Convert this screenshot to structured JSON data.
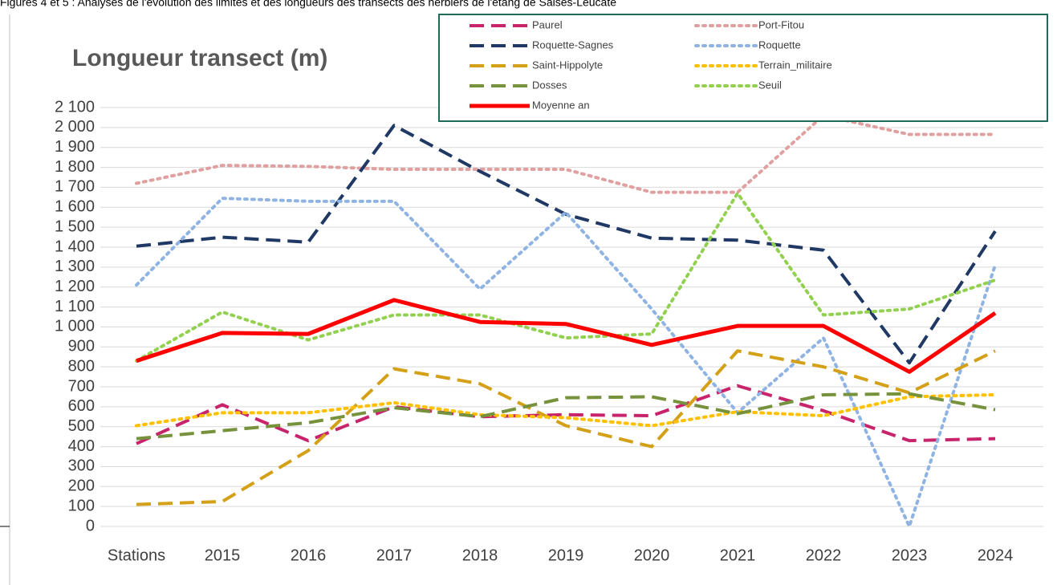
{
  "caption": "Figures 4 et 5 : Analyses de l'évolution des limites et des longueurs des transects des herbiers de l'étang de Salses-Leucate",
  "chart_data": {
    "type": "line",
    "title": "Longueur transect (m)",
    "categories": [
      "Stations",
      "2015",
      "2016",
      "2017",
      "2018",
      "2019",
      "2020",
      "2021",
      "2022",
      "2023",
      "2024"
    ],
    "series": [
      {
        "name": "Paurel",
        "color": "#c8246c",
        "style": "dashed",
        "values": [
          415,
          610,
          430,
          600,
          550,
          560,
          555,
          705,
          580,
          430,
          440
        ]
      },
      {
        "name": "Port-Fitou",
        "color": "#e0a0a0",
        "style": "dotted",
        "values": [
          1720,
          1810,
          1805,
          1790,
          1790,
          1790,
          1675,
          1675,
          2060,
          1965,
          1965
        ]
      },
      {
        "name": "Roquette-Sagnes",
        "color": "#1f3864",
        "style": "dashed",
        "values": [
          1405,
          1450,
          1425,
          2010,
          1780,
          1565,
          1445,
          1435,
          1385,
          820,
          1480
        ]
      },
      {
        "name": "Roquette",
        "color": "#8fb4e3",
        "style": "dotted",
        "values": [
          1210,
          1645,
          1630,
          1630,
          1190,
          1575,
          1090,
          570,
          945,
          0,
          1310
        ]
      },
      {
        "name": "Saint-Hippolyte",
        "color": "#d4a017",
        "style": "dashed",
        "values": [
          110,
          125,
          380,
          790,
          715,
          505,
          400,
          880,
          800,
          670,
          880
        ]
      },
      {
        "name": "Terrain_militaire",
        "color": "#ffc000",
        "style": "dotted",
        "values": [
          505,
          570,
          570,
          620,
          560,
          545,
          505,
          575,
          555,
          650,
          660
        ]
      },
      {
        "name": "Dosses",
        "color": "#76923c",
        "style": "dashed",
        "values": [
          440,
          480,
          520,
          595,
          550,
          645,
          650,
          565,
          660,
          665,
          585
        ]
      },
      {
        "name": "Seuil",
        "color": "#92d050",
        "style": "dotted",
        "values": [
          830,
          1075,
          935,
          1060,
          1060,
          945,
          965,
          1670,
          1060,
          1090,
          1235
        ]
      },
      {
        "name": "Moyenne an",
        "color": "#ff0000",
        "style": "solid",
        "values": [
          830,
          970,
          965,
          1135,
          1025,
          1015,
          910,
          1005,
          1005,
          775,
          1070
        ]
      }
    ],
    "ylim": [
      0,
      2100
    ],
    "yticks": [
      0,
      100,
      200,
      300,
      400,
      500,
      600,
      700,
      800,
      900,
      {
        "value": 1000,
        "label": "1 000"
      },
      {
        "value": 1100,
        "label": "1 100"
      },
      {
        "value": 1200,
        "label": "1 200"
      },
      {
        "value": 1300,
        "label": "1 300"
      },
      {
        "value": 1400,
        "label": "1 400"
      },
      {
        "value": 1500,
        "label": "1 500"
      },
      {
        "value": 1600,
        "label": "1 600"
      },
      {
        "value": 1700,
        "label": "1 700"
      },
      {
        "value": 1800,
        "label": "1 800"
      },
      {
        "value": 1900,
        "label": "1 900"
      },
      {
        "value": 2000,
        "label": "2 000"
      },
      {
        "value": 2100,
        "label": "2 100"
      }
    ],
    "grid": true,
    "legend": "top"
  }
}
